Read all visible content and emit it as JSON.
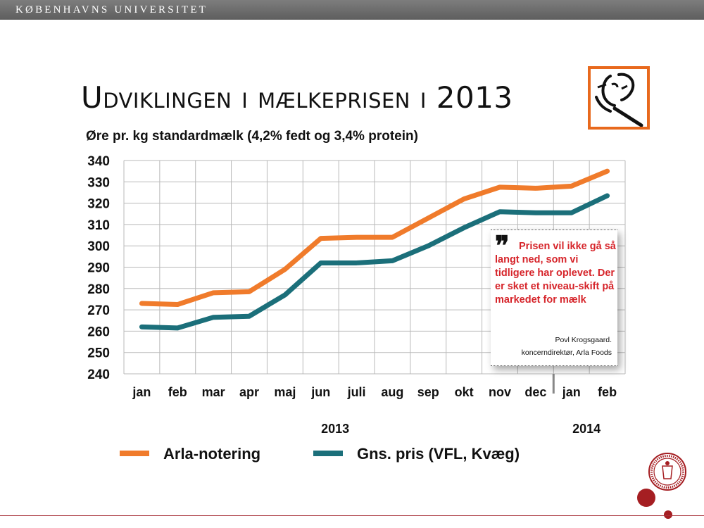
{
  "header": {
    "university": "KØBENHAVNS UNIVERSITET"
  },
  "slide": {
    "title": "Udviklingen i mælkeprisen i 2013",
    "subtitle": "Øre pr. kg standardmælk (4,2% fedt og 3,4% protein)"
  },
  "chart_data": {
    "type": "line",
    "title": "",
    "ylabel": "Øre pr. kg standardmælk (4,2% fedt og 3,4% protein)",
    "xlabel": "",
    "categories": [
      "jan",
      "feb",
      "mar",
      "apr",
      "maj",
      "jun",
      "juli",
      "aug",
      "sep",
      "okt",
      "nov",
      "dec",
      "jan",
      "feb"
    ],
    "year_labels": [
      "2013",
      "2014"
    ],
    "ylim": [
      240,
      340
    ],
    "yticks": [
      240,
      250,
      260,
      270,
      280,
      290,
      300,
      310,
      320,
      330,
      340
    ],
    "grid": true,
    "series": [
      {
        "name": "Arla-notering",
        "color": "#f07b2b",
        "values": [
          273,
          272.5,
          278,
          278.5,
          289,
          303.5,
          304,
          304,
          313,
          322,
          327.5,
          327,
          328,
          335
        ]
      },
      {
        "name": "Gns. pris (VFL, Kvæg)",
        "color": "#1b6f7a",
        "values": [
          262,
          261.5,
          266.5,
          267,
          277,
          292,
          292,
          293,
          300,
          308.5,
          316,
          315.5,
          315.5,
          323.5
        ]
      }
    ]
  },
  "quote": {
    "mark": "❞",
    "text": "Prisen vil ikke gå så langt ned, som vi tidligere har oplevet. Der er sket et niveau-skift på markedet for mælk",
    "author": "Povl Krogsgaard.",
    "role": "koncerndirektør, Arla Foods",
    "text_color": "#d6242a"
  },
  "colors": {
    "accent": "#e8691d",
    "brand_red": "#a51e22",
    "header_bar": "#6f6f6f"
  }
}
